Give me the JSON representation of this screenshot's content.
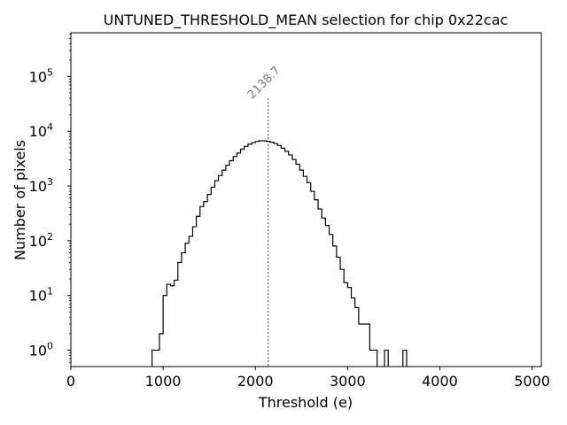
{
  "chart_data": {
    "type": "histogram",
    "title": "UNTUNED_THRESHOLD_MEAN selection for chip 0x22cac",
    "xlabel": "Threshold (e)",
    "ylabel": "Number of pixels",
    "xlim": [
      0,
      5100
    ],
    "ylim_log10": [
      -0.3,
      5.8
    ],
    "yscale": "log",
    "xticks": [
      {
        "value": 0,
        "label": "0"
      },
      {
        "value": 1000,
        "label": "1000"
      },
      {
        "value": 2000,
        "label": "2000"
      },
      {
        "value": 3000,
        "label": "3000"
      },
      {
        "value": 4000,
        "label": "4000"
      },
      {
        "value": 5000,
        "label": "5000"
      }
    ],
    "yticks": [
      {
        "exp": 0,
        "label_base": "10",
        "label_exp": "0"
      },
      {
        "exp": 1,
        "label_base": "10",
        "label_exp": "1"
      },
      {
        "exp": 2,
        "label_base": "10",
        "label_exp": "2"
      },
      {
        "exp": 3,
        "label_base": "10",
        "label_exp": "3"
      },
      {
        "exp": 4,
        "label_base": "10",
        "label_exp": "4"
      },
      {
        "exp": 5,
        "label_base": "10",
        "label_exp": "5"
      }
    ],
    "bin_width": 40,
    "bin_start": 880,
    "counts": [
      1,
      1,
      2,
      10,
      16,
      15,
      19,
      40,
      60,
      90,
      120,
      180,
      280,
      420,
      520,
      700,
      950,
      1250,
      1550,
      1950,
      2400,
      2900,
      3450,
      4000,
      4700,
      5300,
      5800,
      6200,
      6500,
      6700,
      6700,
      6550,
      6300,
      5950,
      5500,
      4900,
      4300,
      3700,
      3050,
      2500,
      1950,
      1500,
      1150,
      800,
      560,
      380,
      260,
      190,
      130,
      80,
      50,
      30,
      17,
      14,
      9,
      6,
      3,
      3,
      3,
      1,
      1,
      0,
      0,
      1,
      0,
      0,
      0,
      0,
      1
    ],
    "vline": {
      "x": 2138.7,
      "label": "2138.7",
      "style": "dotted"
    },
    "line_color": "#000000",
    "vline_color": "#777777"
  }
}
